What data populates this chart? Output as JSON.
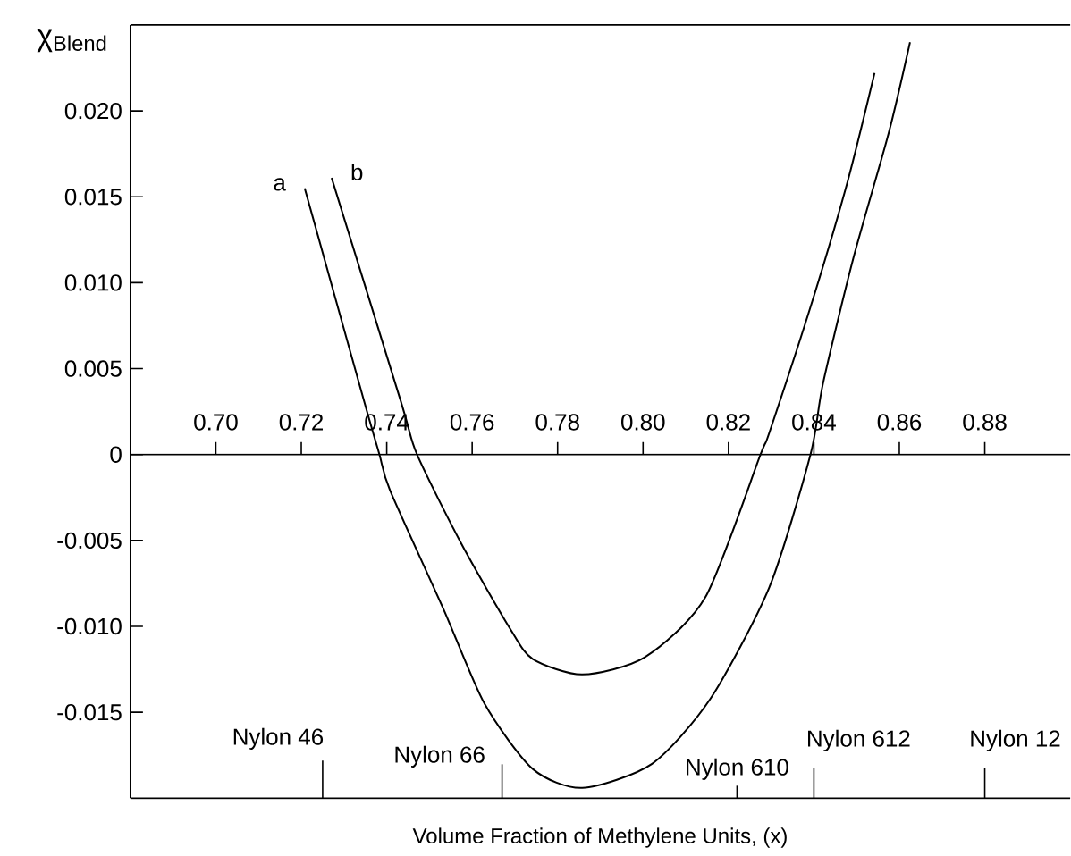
{
  "chart_data": {
    "type": "line",
    "xlabel": "Volume Fraction of Methylene Units, (x)",
    "ylabel": "χ$_{Blend}$",
    "xlim": [
      0.68,
      0.9
    ],
    "ylim": [
      -0.02,
      0.025
    ],
    "xticks": [
      {
        "value": 0.7,
        "label": "0.70"
      },
      {
        "value": 0.72,
        "label": "0.72"
      },
      {
        "value": 0.74,
        "label": "0.74"
      },
      {
        "value": 0.76,
        "label": "0.76"
      },
      {
        "value": 0.78,
        "label": "0.78"
      },
      {
        "value": 0.8,
        "label": "0.80"
      },
      {
        "value": 0.82,
        "label": "0.82"
      },
      {
        "value": 0.84,
        "label": "0.84"
      },
      {
        "value": 0.86,
        "label": "0.86"
      },
      {
        "value": 0.88,
        "label": "0.88"
      }
    ],
    "yticks": [
      {
        "value": 0.02,
        "label": "0.020"
      },
      {
        "value": 0.015,
        "label": "0.015"
      },
      {
        "value": 0.01,
        "label": "0.010"
      },
      {
        "value": 0.005,
        "label": "0.005"
      },
      {
        "value": 0,
        "label": "0"
      },
      {
        "value": -0.005,
        "label": "-0.005"
      },
      {
        "value": -0.01,
        "label": "-0.010"
      },
      {
        "value": -0.015,
        "label": "-0.015"
      }
    ],
    "series": [
      {
        "name": "a",
        "color": "#000000",
        "x": [
          0.7208,
          0.7346,
          0.7383,
          0.7408,
          0.7533,
          0.7629,
          0.7742,
          0.7858,
          0.8021,
          0.8158,
          0.8296,
          0.8392,
          0.8421,
          0.8492,
          0.8575,
          0.8625
        ],
        "values": [
          0.0155,
          0.0032,
          0,
          -0.0021,
          -0.009,
          -0.0145,
          -0.0183,
          -0.0194,
          -0.018,
          -0.0142,
          -0.0077,
          0,
          0.0041,
          0.0114,
          0.0187,
          0.024
        ]
      },
      {
        "name": "b",
        "color": "#000000",
        "x": [
          0.7271,
          0.7433,
          0.7471,
          0.7575,
          0.7688,
          0.7742,
          0.7858,
          0.8004,
          0.8146,
          0.8275,
          0.8296,
          0.8396,
          0.8479,
          0.8542
        ],
        "values": [
          0.0161,
          0.0031,
          0,
          -0.0052,
          -0.0101,
          -0.0119,
          -0.0128,
          -0.0118,
          -0.0083,
          0,
          0.0013,
          0.0089,
          0.0159,
          0.0222
        ]
      }
    ],
    "ref_lines": [
      {
        "axis": "x",
        "value": 0.725,
        "label": "Nylon 46"
      },
      {
        "axis": "x",
        "value": 0.767,
        "label": "Nylon 66"
      },
      {
        "axis": "x",
        "value": 0.822,
        "label": "Nylon 610"
      },
      {
        "axis": "x",
        "value": 0.84,
        "label": "Nylon 612"
      },
      {
        "axis": "x",
        "value": 0.88,
        "label": "Nylon 12"
      }
    ]
  }
}
